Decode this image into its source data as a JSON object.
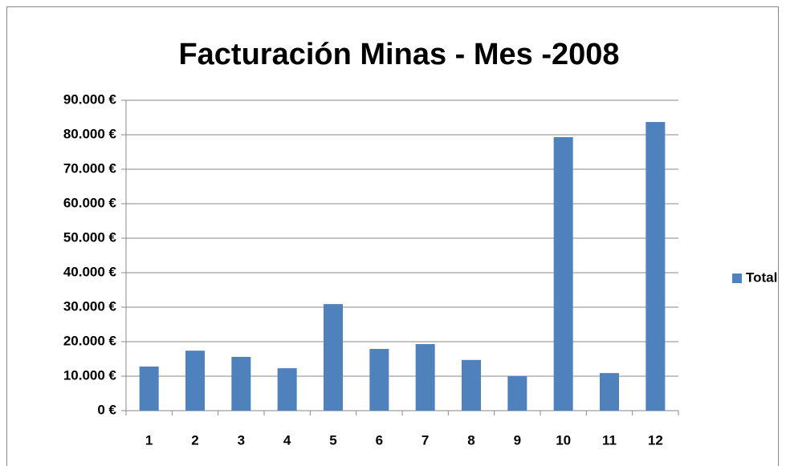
{
  "chart_data": {
    "type": "bar",
    "title": "Facturación Minas - Mes -2008",
    "categories": [
      "1",
      "2",
      "3",
      "4",
      "5",
      "6",
      "7",
      "8",
      "9",
      "10",
      "11",
      "12"
    ],
    "series": [
      {
        "name": "Total",
        "color": "#4f81bd",
        "values": [
          12800,
          17400,
          15600,
          12300,
          30900,
          17900,
          19300,
          14700,
          10000,
          79300,
          10900,
          83700
        ]
      }
    ],
    "ylim": [
      0,
      90000
    ],
    "yticks": [
      {
        "value": 0,
        "label": "0 €"
      },
      {
        "value": 10000,
        "label": "10.000 €"
      },
      {
        "value": 20000,
        "label": "20.000 €"
      },
      {
        "value": 30000,
        "label": "30.000 €"
      },
      {
        "value": 40000,
        "label": "40.000 €"
      },
      {
        "value": 50000,
        "label": "50.000 €"
      },
      {
        "value": 60000,
        "label": "60.000 €"
      },
      {
        "value": 70000,
        "label": "70.000 €"
      },
      {
        "value": 80000,
        "label": "80.000 €"
      },
      {
        "value": 90000,
        "label": "90.000 €"
      }
    ],
    "grid": true,
    "legend": "right"
  }
}
